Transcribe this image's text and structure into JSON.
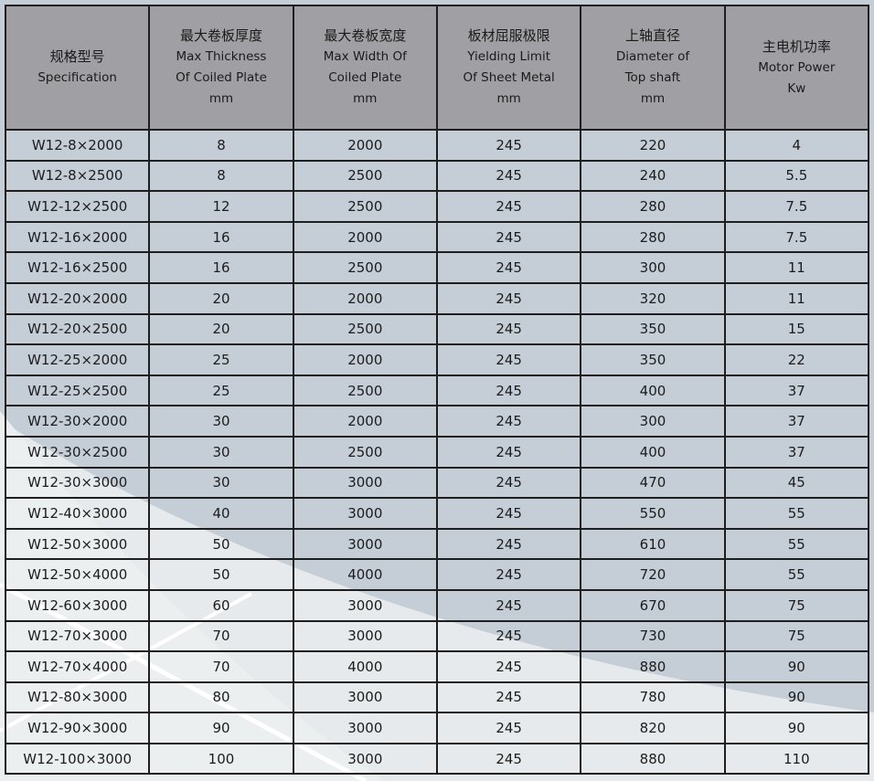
{
  "colors": {
    "header_bg": "#a09fa3",
    "body_bg": "#c5ced7",
    "highlight_bg": "#e6eaec",
    "border": "#1e1e1e"
  },
  "headers": [
    {
      "cn": "规格型号",
      "en": [
        "Specification"
      ]
    },
    {
      "cn": "最大卷板厚度",
      "en": [
        "Max Thickness",
        "Of Coiled Plate",
        "mm"
      ]
    },
    {
      "cn": "最大卷板宽度",
      "en": [
        "Max Width  Of",
        "Coiled Plate",
        "mm"
      ]
    },
    {
      "cn": "板材屈服极限",
      "en": [
        "Yielding Limit",
        "Of  Sheet Metal",
        "mm"
      ]
    },
    {
      "cn": "上轴直径",
      "en": [
        "Diameter of",
        "Top shaft",
        "mm"
      ]
    },
    {
      "cn": "主电机功率",
      "en": [
        "Motor Power",
        "Kw"
      ]
    }
  ],
  "rows": [
    [
      "W12-8×2000",
      "8",
      "2000",
      "245",
      "220",
      "4"
    ],
    [
      "W12-8×2500",
      "8",
      "2500",
      "245",
      "240",
      "5.5"
    ],
    [
      "W12-12×2500",
      "12",
      "2500",
      "245",
      "280",
      "7.5"
    ],
    [
      "W12-16×2000",
      "16",
      "2000",
      "245",
      "280",
      "7.5"
    ],
    [
      "W12-16×2500",
      "16",
      "2500",
      "245",
      "300",
      "11"
    ],
    [
      "W12-20×2000",
      "20",
      "2000",
      "245",
      "320",
      "11"
    ],
    [
      "W12-20×2500",
      "20",
      "2500",
      "245",
      "350",
      "15"
    ],
    [
      "W12-25×2000",
      "25",
      "2000",
      "245",
      "350",
      "22"
    ],
    [
      "W12-25×2500",
      "25",
      "2500",
      "245",
      "400",
      "37"
    ],
    [
      "W12-30×2000",
      "30",
      "2000",
      "245",
      "300",
      "37"
    ],
    [
      "W12-30×2500",
      "30",
      "2500",
      "245",
      "400",
      "37"
    ],
    [
      "W12-30×3000",
      "30",
      "3000",
      "245",
      "470",
      "45"
    ],
    [
      "W12-40×3000",
      "40",
      "3000",
      "245",
      "550",
      "55"
    ],
    [
      "W12-50×3000",
      "50",
      "3000",
      "245",
      "610",
      "55"
    ],
    [
      "W12-50×4000",
      "50",
      "4000",
      "245",
      "720",
      "55"
    ],
    [
      "W12-60×3000",
      "60",
      "3000",
      "245",
      "670",
      "75"
    ],
    [
      "W12-70×3000",
      "70",
      "3000",
      "245",
      "730",
      "75"
    ],
    [
      "W12-70×4000",
      "70",
      "4000",
      "245",
      "880",
      "90"
    ],
    [
      "W12-80×3000",
      "80",
      "3000",
      "245",
      "780",
      "90"
    ],
    [
      "W12-90×3000",
      "90",
      "3000",
      "245",
      "820",
      "90"
    ],
    [
      "W12-100×3000",
      "100",
      "3000",
      "245",
      "880",
      "110"
    ]
  ]
}
